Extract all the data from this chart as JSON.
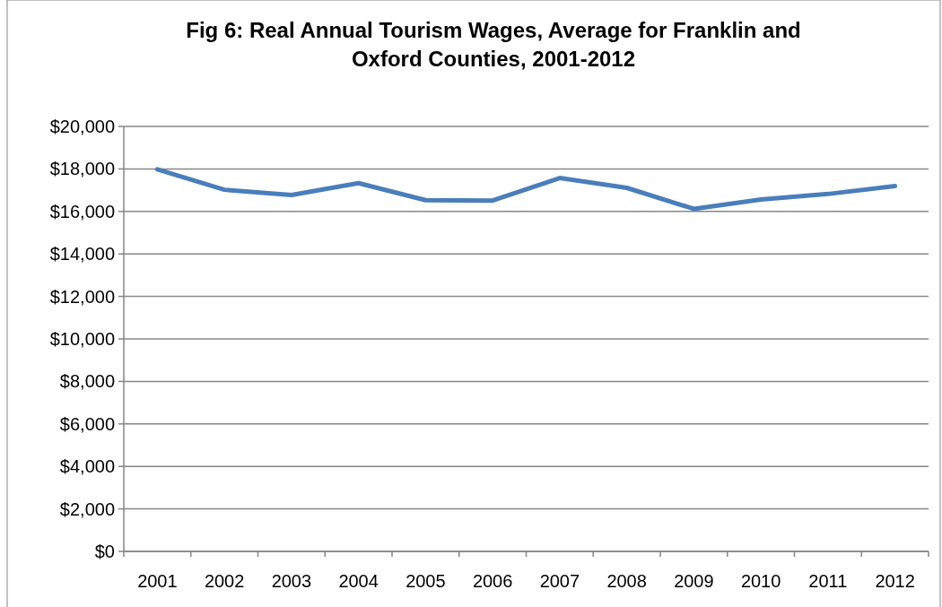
{
  "chart_data": {
    "type": "line",
    "title": "Fig 6: Real Annual Tourism Wages, Average for Franklin and Oxford Counties, 2001-2012",
    "categories": [
      "2001",
      "2002",
      "2003",
      "2004",
      "2005",
      "2006",
      "2007",
      "2008",
      "2009",
      "2010",
      "2011",
      "2012"
    ],
    "series": [
      {
        "color": "#4a7ebb",
        "values": [
          17980,
          17020,
          16770,
          17330,
          16530,
          16510,
          17570,
          17110,
          16120,
          16560,
          16820,
          17190
        ]
      }
    ],
    "ylim": [
      0,
      20000
    ],
    "yticks": [
      {
        "value": 0,
        "label": "$0"
      },
      {
        "value": 2000,
        "label": "$2,000"
      },
      {
        "value": 4000,
        "label": "$4,000"
      },
      {
        "value": 6000,
        "label": "$6,000"
      },
      {
        "value": 8000,
        "label": "$8,000"
      },
      {
        "value": 10000,
        "label": "$10,000"
      },
      {
        "value": 12000,
        "label": "$12,000"
      },
      {
        "value": 14000,
        "label": "$14,000"
      },
      {
        "value": 16000,
        "label": "$16,000"
      },
      {
        "value": 18000,
        "label": "$18,000"
      },
      {
        "value": 20000,
        "label": "$20,000"
      }
    ],
    "grid": "y",
    "marker": "none",
    "line_style": "solid"
  }
}
